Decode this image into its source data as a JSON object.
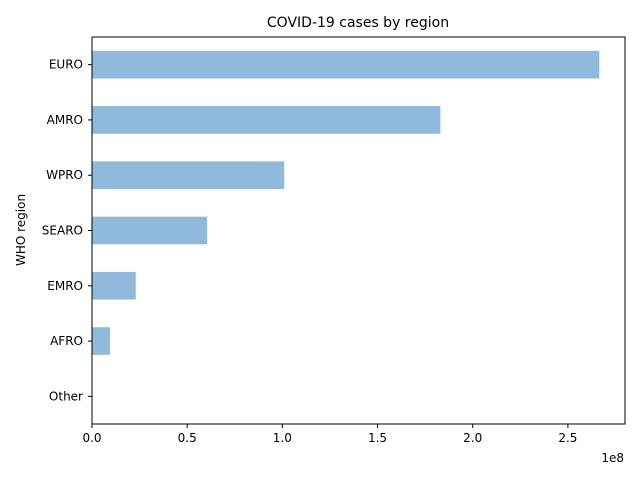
{
  "chart_data": {
    "type": "bar",
    "orientation": "horizontal",
    "title": "COVID-19 cases by region",
    "xlabel": "",
    "ylabel": "WHO region",
    "x_offset_label": "1e8",
    "categories": [
      "EURO",
      "AMRO",
      "WPRO",
      "SEARO",
      "EMRO",
      "AFRO",
      "Other"
    ],
    "values": [
      266500000,
      183000000,
      101000000,
      60500000,
      23000000,
      9500000,
      0
    ],
    "xlim": [
      0,
      280000000
    ],
    "x_ticks": [
      0,
      50000000,
      100000000,
      150000000,
      200000000,
      250000000
    ],
    "x_tick_labels": [
      "0.0",
      "0.5",
      "1.0",
      "1.5",
      "2.0",
      "2.5"
    ],
    "bar_color": "#8fbadb",
    "grid": false,
    "legend": "none"
  }
}
